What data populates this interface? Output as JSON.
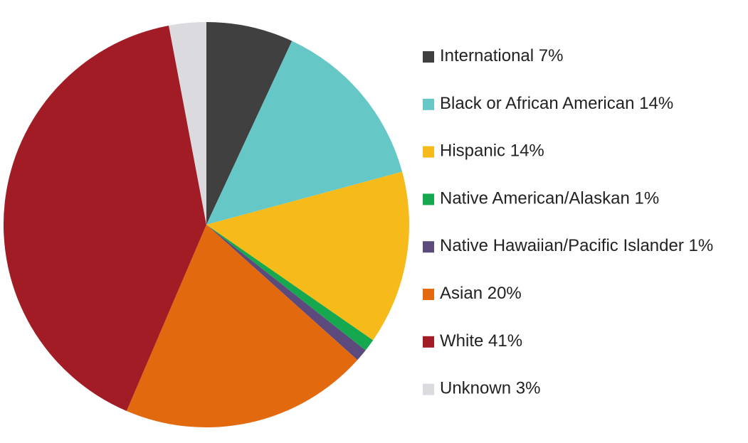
{
  "chart_data": {
    "type": "pie",
    "categories": [
      "International",
      "Black or African American",
      "Hispanic",
      "Native American/Alaskan",
      "Native Hawaiian/Pacific Islander",
      "Asian",
      "White",
      "Unknown"
    ],
    "values": [
      7,
      14,
      14,
      1,
      1,
      20,
      41,
      3
    ],
    "value_labels": [
      "7%",
      "14%",
      "14%",
      "1%",
      "1%",
      "20%",
      "41%",
      "3%"
    ],
    "colors": [
      "#404040",
      "#66c8c6",
      "#f6bb1a",
      "#16a84e",
      "#5d4a7c",
      "#e3690f",
      "#a11c24",
      "#dadadf"
    ]
  }
}
